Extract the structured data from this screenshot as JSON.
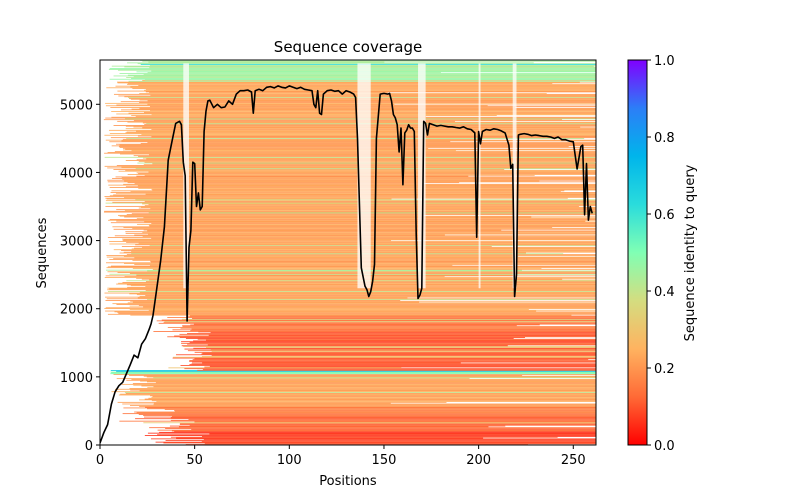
{
  "chart_data": {
    "type": "heatmap",
    "title": "Sequence coverage",
    "xlabel": "Positions",
    "ylabel": "Sequences",
    "xlim": [
      0,
      262
    ],
    "ylim": [
      0,
      5650
    ],
    "xticks": [
      0,
      50,
      100,
      150,
      200,
      250
    ],
    "yticks": [
      0,
      1000,
      2000,
      3000,
      4000,
      5000
    ],
    "colorbar": {
      "label": "Sequence identity to query",
      "range": [
        0.0,
        1.0
      ],
      "ticks": [
        "0.0",
        "0.2",
        "0.4",
        "0.6",
        "0.8",
        "1.0"
      ],
      "colormap": "rainbow_r",
      "stops": [
        "#ff0000",
        "#ff6a36",
        "#ffb360",
        "#d4dd80",
        "#80ffb4",
        "#2adcdc",
        "#00b5eb",
        "#2c7ef7",
        "#8000ff"
      ]
    },
    "heatmap_bands": [
      {
        "y_from": 0,
        "y_to": 200,
        "identity": 0.08,
        "x_start_min": 20,
        "x_start_max": 60
      },
      {
        "y_from": 200,
        "y_to": 430,
        "identity": 0.12,
        "x_start_min": 10,
        "x_start_max": 50
      },
      {
        "y_from": 430,
        "y_to": 560,
        "identity": 0.16,
        "x_start_min": 8,
        "x_start_max": 40
      },
      {
        "y_from": 560,
        "y_to": 1040,
        "identity": 0.22,
        "x_start_min": 5,
        "x_start_max": 30
      },
      {
        "y_from": 1040,
        "y_to": 1090,
        "identity": 0.5,
        "x_start_min": 5,
        "x_start_max": 10
      },
      {
        "y_from": 1090,
        "y_to": 1660,
        "identity": 0.1,
        "x_start_min": 35,
        "x_start_max": 60
      },
      {
        "y_from": 1660,
        "y_to": 1900,
        "identity": 0.14,
        "x_start_min": 28,
        "x_start_max": 50
      },
      {
        "y_from": 1900,
        "y_to": 5350,
        "identity": 0.22,
        "x_start_min": 2,
        "x_start_max": 28
      },
      {
        "y_from": 5350,
        "y_to": 5650,
        "identity": 0.45,
        "x_start_min": 4,
        "x_start_max": 30
      }
    ],
    "coverage_line": {
      "name": "coverage",
      "color": "#000000",
      "x": [
        0,
        2,
        4,
        6,
        8,
        10,
        12,
        14,
        16,
        18,
        20,
        22,
        24,
        26,
        27,
        28,
        29,
        30,
        31,
        32,
        34,
        36,
        38,
        40,
        42,
        43,
        44,
        45,
        46,
        47,
        48,
        49,
        50,
        51,
        52,
        53,
        54,
        55,
        56,
        57,
        58,
        60,
        62,
        64,
        66,
        68,
        70,
        72,
        74,
        76,
        78,
        80,
        81,
        82,
        84,
        86,
        88,
        90,
        92,
        94,
        96,
        98,
        100,
        102,
        104,
        106,
        108,
        110,
        112,
        113,
        114,
        115,
        116,
        117,
        118,
        120,
        122,
        124,
        126,
        128,
        130,
        132,
        134,
        135,
        136,
        138,
        140,
        141,
        142,
        143,
        144,
        145,
        146,
        148,
        150,
        152,
        153,
        154,
        155,
        156,
        157,
        158,
        159,
        160,
        161,
        162,
        163,
        164,
        165,
        166,
        167,
        168,
        169,
        170,
        171,
        172,
        173,
        174,
        176,
        178,
        180,
        182,
        184,
        186,
        188,
        190,
        192,
        194,
        196,
        198,
        199,
        200,
        201,
        202,
        204,
        206,
        208,
        210,
        212,
        214,
        216,
        217,
        218,
        219,
        220,
        221,
        222,
        224,
        226,
        228,
        230,
        232,
        234,
        236,
        238,
        240,
        242,
        244,
        246,
        248,
        250,
        252,
        254,
        255,
        256,
        257,
        258,
        259,
        260,
        261,
        262
      ],
      "y": [
        30,
        180,
        300,
        600,
        780,
        870,
        920,
        1050,
        1180,
        1320,
        1280,
        1480,
        1560,
        1700,
        1780,
        1900,
        2100,
        2300,
        2500,
        2700,
        3200,
        4180,
        4450,
        4720,
        4750,
        4700,
        4150,
        3950,
        1820,
        2900,
        3150,
        4150,
        4130,
        3500,
        3700,
        3450,
        3500,
        4600,
        4900,
        5050,
        5060,
        4950,
        5000,
        4950,
        4960,
        5050,
        5000,
        5150,
        5200,
        5200,
        5210,
        5180,
        4870,
        5200,
        5220,
        5200,
        5250,
        5260,
        5240,
        5270,
        5250,
        5240,
        5270,
        5250,
        5230,
        5250,
        5220,
        5210,
        5200,
        5000,
        4950,
        5200,
        4870,
        4850,
        5150,
        5200,
        5210,
        5190,
        5200,
        5150,
        5200,
        5180,
        5150,
        5100,
        4500,
        2600,
        2330,
        2280,
        2180,
        2250,
        2400,
        2650,
        4500,
        5150,
        5160,
        5150,
        5160,
        5050,
        4850,
        4800,
        4700,
        4300,
        4650,
        3820,
        4580,
        4620,
        4700,
        4650,
        4650,
        4600,
        3100,
        2150,
        2200,
        2300,
        4750,
        4720,
        4550,
        4720,
        4700,
        4680,
        4690,
        4680,
        4670,
        4670,
        4660,
        4650,
        4670,
        4640,
        4630,
        4580,
        3050,
        4600,
        4420,
        4600,
        4630,
        4620,
        4640,
        4630,
        4610,
        4580,
        4400,
        4060,
        4120,
        2180,
        2500,
        4550,
        4560,
        4570,
        4560,
        4540,
        4550,
        4540,
        4530,
        4530,
        4520,
        4500,
        4520,
        4480,
        4480,
        4460,
        4450,
        4050,
        4380,
        4400,
        3380,
        4130,
        3300,
        3500,
        3400
      ]
    }
  }
}
